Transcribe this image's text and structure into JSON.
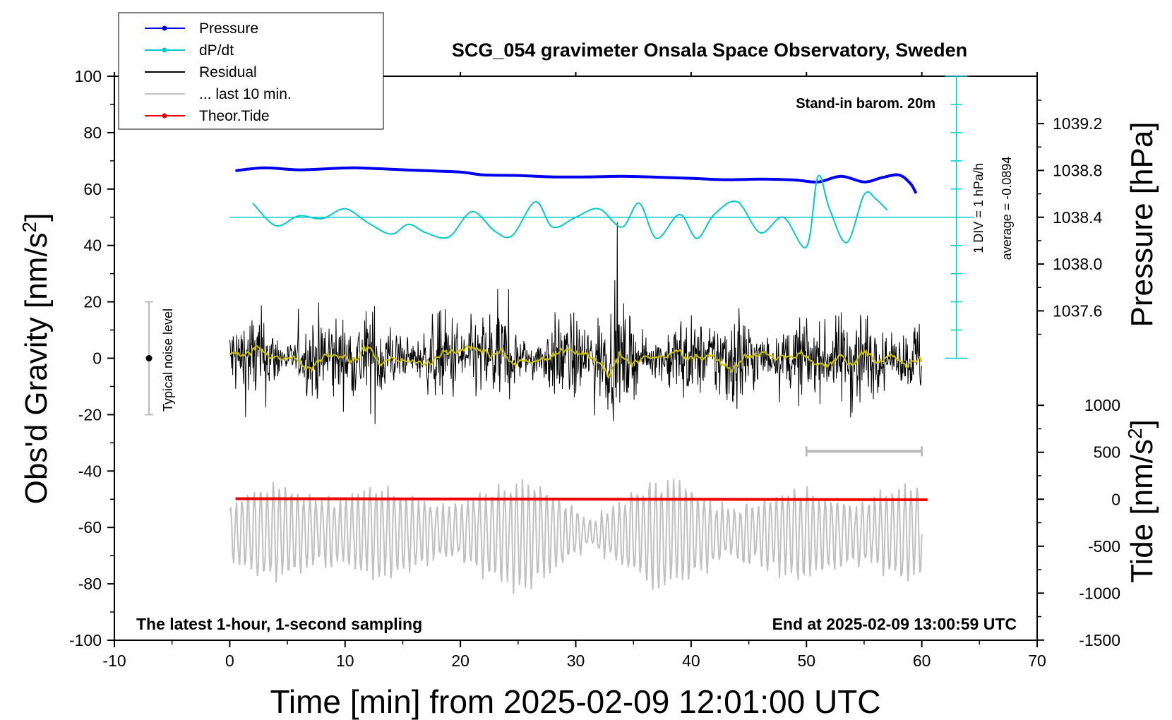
{
  "chart_data": {
    "type": "line",
    "title": "SCG_054 gravimeter Onsala Space Observatory, Sweden",
    "xlabel": "Time [min] from 2025-02-09 12:01:00 UTC",
    "ylabel_left": "Obs'd Gravity [nm/s",
    "ylabel_left_sup": "2",
    "ylabel_left_end": "]",
    "ylabel_right_top": "Pressure [hPa]",
    "ylabel_right_bottom": "Tide [nm/s",
    "ylabel_right_bottom_sup": "2",
    "ylabel_right_bottom_end": "]",
    "xlim": [
      -10,
      70
    ],
    "ylim": [
      -100,
      100
    ],
    "x_ticks": [
      "-10",
      "0",
      "10",
      "20",
      "30",
      "40",
      "50",
      "60",
      "70"
    ],
    "y_ticks": [
      "100",
      "80",
      "60",
      "40",
      "20",
      "0",
      "-20",
      "-40",
      "-60",
      "-80",
      "-100"
    ],
    "pressure_axis": {
      "ticks": [
        "1039.2",
        "1038.8",
        "1038.4",
        "1038.0",
        "1037.6"
      ],
      "tick_values": [
        1039.2,
        1038.8,
        1038.4,
        1038.0,
        1037.6
      ]
    },
    "tide_axis": {
      "ticks": [
        "1000",
        "500",
        "0",
        "-500",
        "-1000",
        "-1500"
      ],
      "tick_values": [
        1000,
        500,
        0,
        -500,
        -1000,
        -1500
      ]
    },
    "annotations": {
      "stand_in": "Stand-in barom. 20m",
      "div_label": "1 DIV = 1 hPa/h",
      "average_label": "average = -0.0894",
      "noise_label": "Typical noise level",
      "bottom_left": "The latest 1-hour, 1-second sampling",
      "bottom_right": "End at 2025-02-09 13:00:59 UTC"
    },
    "legend": {
      "position": "top-left",
      "entries": [
        {
          "label": "Pressure",
          "color": "#0000ee",
          "marker": true
        },
        {
          "label": "dP/dt",
          "color": "#00c8c8",
          "marker": true
        },
        {
          "label": "Residual",
          "color": "#000000",
          "marker": false
        },
        {
          "label": "... last 10 min.",
          "color": "#c0c0c0",
          "marker": false
        },
        {
          "label": "Theor.Tide",
          "color": "#ee0000",
          "marker": true
        }
      ]
    },
    "series": [
      {
        "name": "Pressure",
        "color": "#0000ee",
        "x": [
          0.5,
          3,
          6,
          9,
          11,
          14,
          17,
          20,
          22,
          25,
          28,
          31,
          34,
          37,
          40,
          43,
          46,
          49,
          51,
          53,
          55,
          56.5,
          58,
          59,
          59.5
        ],
        "y": [
          66.5,
          67.5,
          66.8,
          67.3,
          67.5,
          67,
          66.5,
          66,
          65,
          64.8,
          64.3,
          64.3,
          64.5,
          64.2,
          63.8,
          63.3,
          63.5,
          63.2,
          62.5,
          64.5,
          62.5,
          64,
          65,
          62,
          58.5
        ]
      },
      {
        "name": "dP/dt",
        "color": "#00c8c8",
        "x": [
          2,
          4,
          6,
          8,
          10,
          12,
          14,
          15.5,
          17,
          19,
          21,
          23,
          24.5,
          26.5,
          28,
          30,
          32,
          34,
          35.5,
          37,
          39,
          40.5,
          42,
          44,
          46,
          48,
          50,
          51,
          52,
          53.5,
          55,
          56,
          57
        ],
        "y": [
          55,
          47,
          50.5,
          49.5,
          53,
          48,
          44,
          47.5,
          44.5,
          43,
          52,
          45,
          43.5,
          55.5,
          46.5,
          50,
          53,
          46.5,
          55,
          42.5,
          51,
          42.5,
          51,
          55.5,
          44.5,
          50,
          39.5,
          64.5,
          53,
          41,
          58,
          56.5,
          52.5
        ]
      },
      {
        "name": "Theor.Tide",
        "color": "#ee0000",
        "x": [
          0.5,
          20,
          40,
          60.5
        ],
        "y": [
          -49.8,
          -49.9,
          -50.0,
          -50.2
        ]
      }
    ],
    "average_line": {
      "y": 50,
      "color": "#00c8c8"
    },
    "noise_bar": {
      "x": -7,
      "ymin": -20,
      "ymax": 20
    },
    "last10_bar": {
      "xmin": 50,
      "xmax": 60,
      "y": -33
    }
  }
}
